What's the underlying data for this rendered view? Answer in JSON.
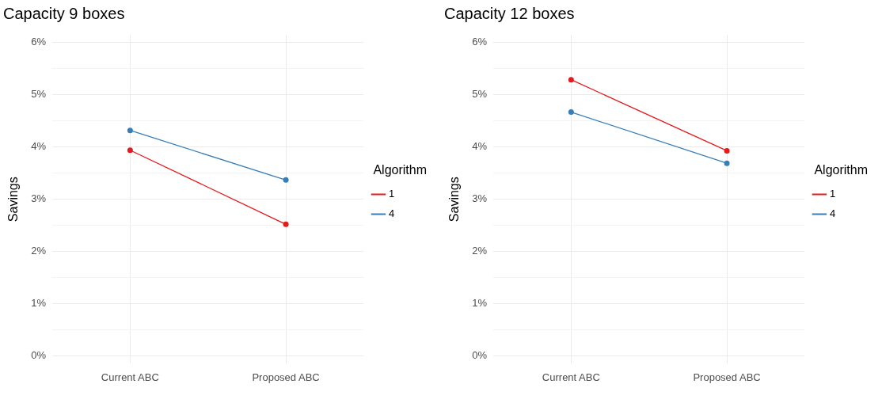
{
  "chart_data": [
    {
      "type": "line",
      "title": "Capacity 9 boxes",
      "ylabel": "Savings",
      "legend_title": "Algorithm",
      "categories": [
        "Current ABC",
        "Proposed ABC"
      ],
      "series": [
        {
          "name": "1",
          "color": "#e41a1c",
          "values": [
            3.94,
            2.52
          ]
        },
        {
          "name": "4",
          "color": "#377eb8",
          "values": [
            4.32,
            3.37
          ]
        }
      ],
      "ylim": [
        -0.15,
        6.15
      ],
      "yticks": [
        {
          "value": 0,
          "label": "0%"
        },
        {
          "value": 0.5,
          "label": null
        },
        {
          "value": 1,
          "label": "1%"
        },
        {
          "value": 1.5,
          "label": null
        },
        {
          "value": 2,
          "label": "2%"
        },
        {
          "value": 2.5,
          "label": null
        },
        {
          "value": 3,
          "label": "3%"
        },
        {
          "value": 3.5,
          "label": null
        },
        {
          "value": 4,
          "label": "4%"
        },
        {
          "value": 4.5,
          "label": null
        },
        {
          "value": 5,
          "label": "5%"
        },
        {
          "value": 5.5,
          "label": null
        },
        {
          "value": 6,
          "label": "6%"
        }
      ],
      "grid": true,
      "legend": "right",
      "marker": "circle",
      "line_style": "solid"
    },
    {
      "type": "line",
      "title": "Capacity 12 boxes",
      "ylabel": "Savings",
      "legend_title": "Algorithm",
      "categories": [
        "Current ABC",
        "Proposed ABC"
      ],
      "series": [
        {
          "name": "1",
          "color": "#e41a1c",
          "values": [
            5.29,
            3.93
          ]
        },
        {
          "name": "4",
          "color": "#377eb8",
          "values": [
            4.67,
            3.69
          ]
        }
      ],
      "ylim": [
        -0.15,
        6.15
      ],
      "yticks": [
        {
          "value": 0,
          "label": "0%"
        },
        {
          "value": 0.5,
          "label": null
        },
        {
          "value": 1,
          "label": "1%"
        },
        {
          "value": 1.5,
          "label": null
        },
        {
          "value": 2,
          "label": "2%"
        },
        {
          "value": 2.5,
          "label": null
        },
        {
          "value": 3,
          "label": "3%"
        },
        {
          "value": 3.5,
          "label": null
        },
        {
          "value": 4,
          "label": "4%"
        },
        {
          "value": 4.5,
          "label": null
        },
        {
          "value": 5,
          "label": "5%"
        },
        {
          "value": 5.5,
          "label": null
        },
        {
          "value": 6,
          "label": "6%"
        }
      ],
      "grid": true,
      "legend": "right",
      "marker": "circle",
      "line_style": "solid"
    }
  ]
}
